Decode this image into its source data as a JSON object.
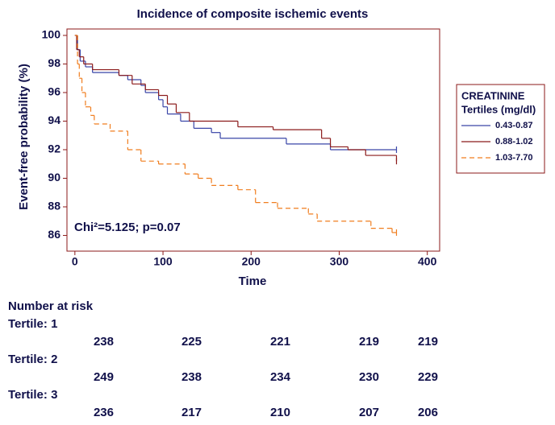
{
  "chart_data": {
    "type": "step",
    "title": "Incidence of composite ischemic events",
    "xlabel": "Time",
    "ylabel": "Event-free probability (%)",
    "annotation": "Chi²=5.125; p=0.07",
    "legend_title": [
      "CREATININE",
      "Tertiles (mg/dl)"
    ],
    "xlim": [
      -9,
      414
    ],
    "ylim": [
      84.9,
      100.45
    ],
    "xticks": [
      0,
      100,
      200,
      300,
      400
    ],
    "yticks": [
      86,
      88,
      90,
      92,
      94,
      96,
      98,
      100
    ],
    "series": [
      {
        "name": "0.43-0.87",
        "color": "#3a46a8",
        "dashed": false,
        "x": [
          0,
          3,
          6,
          12,
          20,
          50,
          60,
          75,
          80,
          95,
          100,
          105,
          120,
          135,
          155,
          165,
          240,
          290,
          365
        ],
        "values": [
          100,
          99,
          98.2,
          97.8,
          97.4,
          97.2,
          96.9,
          96.5,
          96,
          95.5,
          95,
          94.5,
          94,
          93.5,
          93.2,
          92.8,
          92.4,
          92,
          92
        ]
      },
      {
        "name": "0.88-1.02",
        "color": "#8b1a1a",
        "dashed": false,
        "x": [
          0,
          2,
          5,
          10,
          20,
          50,
          65,
          80,
          95,
          105,
          115,
          130,
          185,
          225,
          280,
          290,
          310,
          330,
          365
        ],
        "values": [
          100,
          99,
          98.5,
          98,
          97.6,
          97.2,
          96.6,
          96.2,
          95.8,
          95.2,
          94.6,
          94,
          93.6,
          93.4,
          92.8,
          92.2,
          92,
          91.6,
          91.2
        ]
      },
      {
        "name": "1.03-7.70",
        "color": "#f07d1e",
        "dashed": true,
        "x": [
          0,
          3,
          5,
          8,
          12,
          18,
          22,
          40,
          60,
          75,
          95,
          125,
          140,
          155,
          185,
          205,
          230,
          265,
          275,
          336,
          360,
          365
        ],
        "values": [
          100,
          98,
          97,
          96,
          95,
          94.4,
          93.8,
          93.3,
          92,
          91.2,
          91,
          90.3,
          90,
          89.5,
          89.2,
          88.3,
          87.9,
          87.5,
          87,
          86.5,
          86.2,
          86.2
        ]
      }
    ]
  },
  "risk_table": {
    "title": "Number at risk",
    "rows": [
      {
        "label": "Tertile: 1",
        "counts": [
          "238",
          "225",
          "221",
          "219",
          "219"
        ]
      },
      {
        "label": "Tertile: 2",
        "counts": [
          "249",
          "238",
          "234",
          "230",
          "229"
        ]
      },
      {
        "label": "Tertile: 3",
        "counts": [
          "236",
          "217",
          "210",
          "207",
          "206"
        ]
      }
    ]
  }
}
